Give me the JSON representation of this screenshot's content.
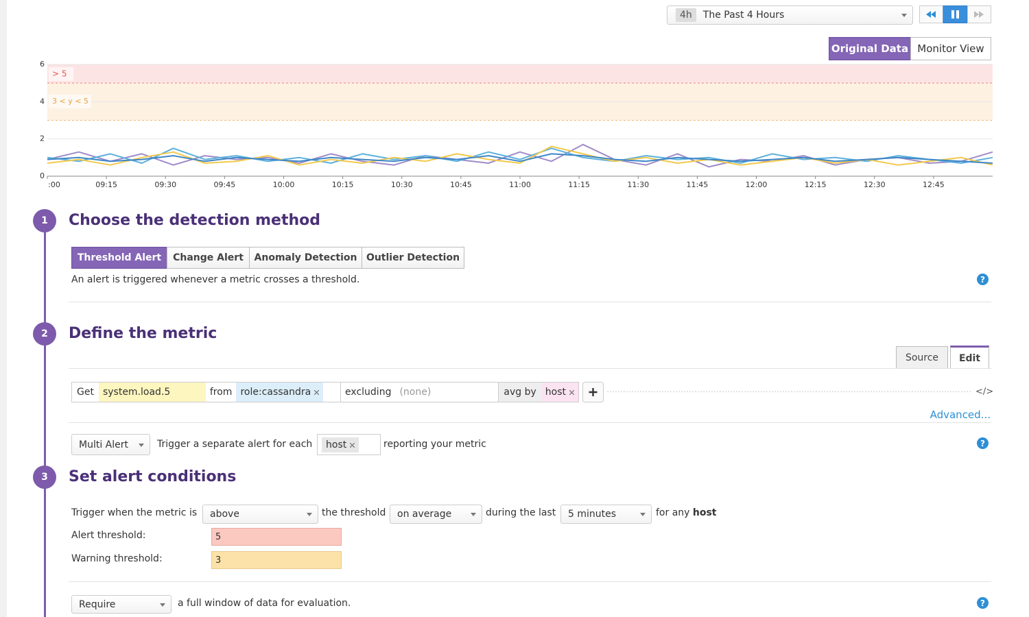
{
  "header": {
    "time_range": {
      "badge": "4h",
      "label": "The Past 4 Hours"
    },
    "view_tabs": [
      "Original Data",
      "Monitor View"
    ]
  },
  "help_icon": "?",
  "chart_data": {
    "type": "line",
    "ylim": [
      0,
      6
    ],
    "yticks": [
      0,
      2,
      4,
      6
    ],
    "xlim": [
      "09:00",
      "13:00"
    ],
    "xticks": [
      {
        "value": "09:00",
        "label": ":00"
      },
      "09:15",
      "09:30",
      "09:45",
      "10:00",
      "10:15",
      "10:30",
      "10:45",
      "11:00",
      "11:15",
      "11:30",
      "11:45",
      "12:00",
      "12:15",
      "12:30",
      "12:45"
    ],
    "x": [
      "09:00",
      "09:08",
      "09:16",
      "09:24",
      "09:32",
      "09:40",
      "09:48",
      "09:56",
      "10:04",
      "10:12",
      "10:20",
      "10:28",
      "10:36",
      "10:44",
      "10:52",
      "11:00",
      "11:08",
      "11:16",
      "11:24",
      "11:32",
      "11:40",
      "11:48",
      "11:56",
      "12:04",
      "12:12",
      "12:20",
      "12:28",
      "12:36",
      "12:44",
      "12:52",
      "13:00"
    ],
    "series": [
      {
        "color": "#9e8bc8",
        "values": [
          0.9,
          1.3,
          0.8,
          1.2,
          0.6,
          1.1,
          0.9,
          1.0,
          0.7,
          1.2,
          0.8,
          0.6,
          1.1,
          0.9,
          0.7,
          1.3,
          0.8,
          1.7,
          0.9,
          0.6,
          1.2,
          0.5,
          0.9,
          0.8,
          1.1,
          0.6,
          0.9,
          1.0,
          0.7,
          0.8,
          1.3
        ]
      },
      {
        "color": "#5bb0dd",
        "values": [
          1.0,
          0.8,
          1.2,
          0.7,
          1.5,
          0.9,
          1.1,
          0.8,
          1.0,
          0.7,
          1.2,
          0.9,
          1.1,
          0.8,
          1.3,
          0.9,
          1.5,
          1.0,
          0.8,
          1.1,
          0.9,
          1.0,
          0.7,
          1.2,
          0.9,
          1.0,
          0.8,
          1.1,
          0.9,
          0.7,
          1.0
        ]
      },
      {
        "color": "#f2c94c",
        "values": [
          0.7,
          0.9,
          0.6,
          1.0,
          1.3,
          0.7,
          0.8,
          1.1,
          0.6,
          0.9,
          0.7,
          1.0,
          0.8,
          1.2,
          0.9,
          0.7,
          1.6,
          1.2,
          0.8,
          1.0,
          0.7,
          0.9,
          0.6,
          0.8,
          1.0,
          0.7,
          0.9,
          0.6,
          0.8,
          1.0,
          0.6
        ]
      },
      {
        "color": "#3d86c6",
        "values": [
          0.9,
          1.0,
          0.8,
          0.9,
          1.1,
          0.8,
          1.0,
          0.9,
          0.8,
          1.0,
          0.9,
          0.8,
          1.0,
          0.9,
          1.1,
          0.8,
          1.2,
          1.1,
          0.9,
          0.8,
          1.0,
          0.9,
          0.8,
          0.9,
          1.0,
          0.8,
          0.9,
          1.0,
          0.9,
          0.8,
          0.7
        ]
      }
    ],
    "thresholds": {
      "alert": {
        "label": "> 5",
        "color": "#e2574c",
        "band": "#fde4e4"
      },
      "warning": {
        "label": "3 < y < 5",
        "color": "#e9a23b",
        "band": "#fdf1e2"
      }
    }
  },
  "steps": [
    {
      "number": 1,
      "title": "Choose the detection method",
      "method_tabs": [
        "Threshold Alert",
        "Change Alert",
        "Anomaly Detection",
        "Outlier Detection"
      ],
      "description": "An alert is triggered whenever a metric crosses a threshold."
    },
    {
      "number": 2,
      "title": "Define the metric",
      "editor_tabs": [
        "Source",
        "Edit"
      ],
      "query": {
        "get_label": "Get",
        "metric": "system.load.5",
        "from_label": "from",
        "from_tag": "role:cassandra",
        "excluding_label": "excluding",
        "excluding_value": "(none)",
        "avg_label": "avg by",
        "avg_tag": "host"
      },
      "code_toggle": "</>",
      "advanced": "Advanced...",
      "multi_alert": {
        "select": "Multi Alert",
        "text": "Trigger a separate alert for each",
        "tag": "host",
        "suffix": "reporting your metric"
      }
    },
    {
      "number": 3,
      "title": "Set alert conditions",
      "trigger": {
        "prefix": "Trigger when the metric is",
        "comparator": "above",
        "threshold_text": "the threshold",
        "aggregation": "on average",
        "window_text": "during the last",
        "window": "5 minutes",
        "scope_text": "for any",
        "scope": "host"
      },
      "alert_threshold": {
        "label": "Alert threshold:",
        "value": 5
      },
      "warning_threshold": {
        "label": "Warning threshold:",
        "value": 3
      },
      "data_window": {
        "select": "Require",
        "text": "a full window of data for evaluation."
      }
    }
  ]
}
